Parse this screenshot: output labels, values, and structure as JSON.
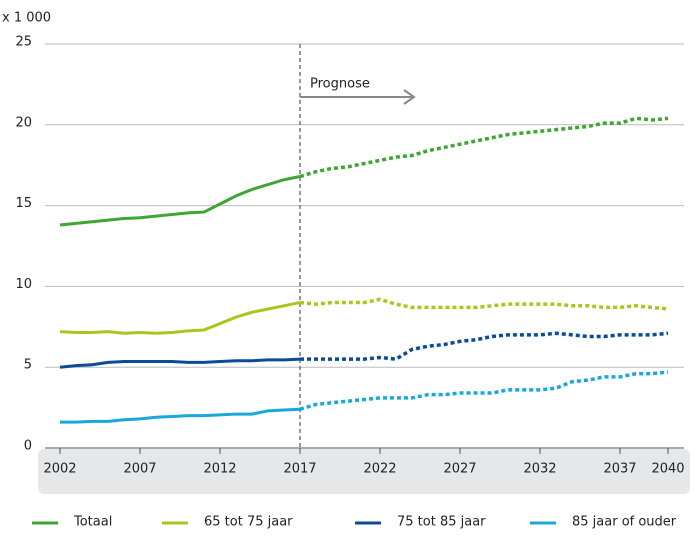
{
  "chart_data": {
    "type": "line",
    "y_unit_label": "x 1 000",
    "annotation": "Prognose",
    "forecast_start": 2017,
    "x": [
      2002,
      2003,
      2004,
      2005,
      2006,
      2007,
      2008,
      2009,
      2010,
      2011,
      2012,
      2013,
      2014,
      2015,
      2016,
      2017,
      2018,
      2019,
      2020,
      2021,
      2022,
      2023,
      2024,
      2025,
      2026,
      2027,
      2028,
      2029,
      2030,
      2031,
      2032,
      2033,
      2034,
      2035,
      2036,
      2037,
      2038,
      2039,
      2040
    ],
    "xlim": [
      2002,
      2040
    ],
    "xticks": [
      2002,
      2007,
      2012,
      2017,
      2022,
      2027,
      2032,
      2037,
      2040
    ],
    "ylim": [
      0,
      25
    ],
    "yticks": [
      0,
      5,
      10,
      15,
      20,
      25
    ],
    "grid": true,
    "series": [
      {
        "name": "Totaal",
        "color": "#3fa535",
        "values": [
          13.8,
          13.9,
          14.0,
          14.1,
          14.2,
          14.25,
          14.35,
          14.45,
          14.55,
          14.6,
          15.1,
          15.6,
          16.0,
          16.3,
          16.6,
          16.8,
          17.1,
          17.3,
          17.4,
          17.6,
          17.8,
          18.0,
          18.1,
          18.4,
          18.6,
          18.8,
          19.0,
          19.2,
          19.4,
          19.5,
          19.6,
          19.7,
          19.8,
          19.9,
          20.1,
          20.1,
          20.4,
          20.3,
          20.4
        ]
      },
      {
        "name": "65 tot 75 jaar",
        "color": "#a6c81e",
        "values": [
          7.2,
          7.15,
          7.15,
          7.2,
          7.1,
          7.15,
          7.1,
          7.15,
          7.25,
          7.3,
          7.7,
          8.1,
          8.4,
          8.6,
          8.8,
          9.0,
          8.9,
          9.0,
          9.0,
          9.0,
          9.2,
          8.9,
          8.7,
          8.7,
          8.7,
          8.7,
          8.7,
          8.8,
          8.9,
          8.9,
          8.9,
          8.9,
          8.8,
          8.8,
          8.7,
          8.7,
          8.8,
          8.7,
          8.6
        ]
      },
      {
        "name": "75 tot 85 jaar",
        "color": "#0a4c96",
        "values": [
          5.0,
          5.1,
          5.15,
          5.3,
          5.35,
          5.35,
          5.35,
          5.35,
          5.3,
          5.3,
          5.35,
          5.4,
          5.4,
          5.45,
          5.45,
          5.5,
          5.5,
          5.5,
          5.5,
          5.5,
          5.6,
          5.5,
          6.1,
          6.3,
          6.4,
          6.6,
          6.7,
          6.9,
          7.0,
          7.0,
          7.0,
          7.1,
          7.0,
          6.9,
          6.9,
          7.0,
          7.0,
          7.0,
          7.1
        ]
      },
      {
        "name": "85 jaar of ouder",
        "color": "#1aa7d9",
        "values": [
          1.6,
          1.6,
          1.65,
          1.65,
          1.75,
          1.8,
          1.9,
          1.95,
          2.0,
          2.0,
          2.05,
          2.1,
          2.1,
          2.3,
          2.35,
          2.4,
          2.7,
          2.8,
          2.9,
          3.0,
          3.1,
          3.1,
          3.1,
          3.3,
          3.3,
          3.4,
          3.4,
          3.4,
          3.6,
          3.6,
          3.6,
          3.7,
          4.1,
          4.2,
          4.4,
          4.4,
          4.6,
          4.6,
          4.7
        ]
      }
    ]
  }
}
